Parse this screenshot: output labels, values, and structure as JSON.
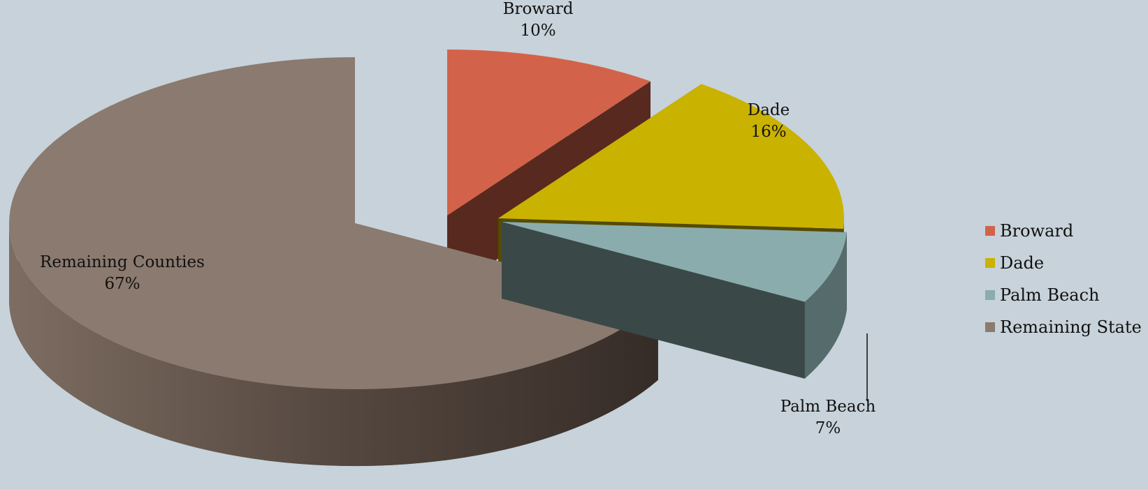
{
  "chart_data": {
    "type": "pie",
    "title": "",
    "slices": [
      {
        "name": "Broward",
        "value": 10,
        "label": "Broward",
        "value_label": "10%",
        "color": "#d2634a",
        "exploded": true
      },
      {
        "name": "Dade",
        "value": 16,
        "label": "Dade",
        "value_label": "16%",
        "color": "#cab200",
        "exploded": true
      },
      {
        "name": "Palm Beach",
        "value": 7,
        "label": "Palm Beach",
        "value_label": "7%",
        "color": "#8aacac",
        "exploded": true
      },
      {
        "name": "Remaining State",
        "value": 67,
        "label": "Remaining Counties",
        "value_label": "67%",
        "color": "#8b7a6f",
        "exploded": false
      }
    ],
    "legend": {
      "position": "right",
      "entries": [
        "Broward",
        "Dade",
        "Palm Beach",
        "Remaining State"
      ]
    },
    "style": "3d-exploded"
  }
}
